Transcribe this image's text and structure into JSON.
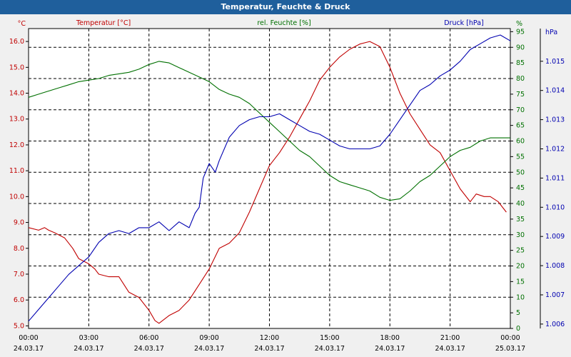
{
  "window": {
    "title": "Temperatur, Feuchte & Druck"
  },
  "chart_data": {
    "type": "line",
    "title": "Temperatur, Feuchte & Druck",
    "x_ticks": [
      {
        "time": "00:00",
        "date": "24.03.17"
      },
      {
        "time": "03:00",
        "date": "24.03.17"
      },
      {
        "time": "06:00",
        "date": "24.03.17"
      },
      {
        "time": "09:00",
        "date": "24.03.17"
      },
      {
        "time": "12:00",
        "date": "24.03.17"
      },
      {
        "time": "15:00",
        "date": "24.03.17"
      },
      {
        "time": "18:00",
        "date": "24.03.17"
      },
      {
        "time": "21:00",
        "date": "24.03.17"
      },
      {
        "time": "00:00",
        "date": "25.03.17"
      }
    ],
    "grid": true,
    "axes": [
      {
        "side": "left",
        "label": "Temperatur [°C]",
        "unit": "°C",
        "color": "#c00000",
        "range": [
          4.9,
          16.5
        ],
        "ticks": [
          "5.0",
          "6.0",
          "7.0",
          "8.0",
          "9.0",
          "10.0",
          "11.0",
          "12.0",
          "13.0",
          "14.0",
          "15.0",
          "16.0"
        ]
      },
      {
        "side": "right",
        "label": "rel. Feuchte [%]",
        "unit": "%",
        "color": "#007000",
        "range": [
          0,
          96
        ],
        "ticks": [
          "0",
          "5",
          "10",
          "15",
          "20",
          "25",
          "30",
          "35",
          "40",
          "45",
          "50",
          "55",
          "60",
          "65",
          "70",
          "75",
          "80",
          "85",
          "90",
          "95"
        ]
      },
      {
        "side": "right-outer",
        "label": "Druck [hPa]",
        "unit": "hPa",
        "color": "#0000b0",
        "range": [
          1005.85,
          1016.12
        ],
        "ticks": [
          "1.006",
          "1.007",
          "1.008",
          "1.009",
          "1.010",
          "1.011",
          "1.012",
          "1.013",
          "1.014",
          "1.015"
        ]
      }
    ],
    "series": [
      {
        "name": "Temperatur [°C]",
        "axis": 0,
        "color": "#c00000",
        "points": [
          [
            0,
            8.8
          ],
          [
            0.5,
            8.7
          ],
          [
            0.8,
            8.8
          ],
          [
            1.0,
            8.7
          ],
          [
            1.3,
            8.6
          ],
          [
            1.8,
            8.4
          ],
          [
            2.2,
            8.0
          ],
          [
            2.5,
            7.6
          ],
          [
            3.0,
            7.4
          ],
          [
            3.3,
            7.2
          ],
          [
            3.5,
            7.0
          ],
          [
            4.0,
            6.9
          ],
          [
            4.5,
            6.9
          ],
          [
            5.0,
            6.3
          ],
          [
            5.5,
            6.1
          ],
          [
            6.0,
            5.6
          ],
          [
            6.3,
            5.2
          ],
          [
            6.5,
            5.1
          ],
          [
            7.0,
            5.4
          ],
          [
            7.5,
            5.6
          ],
          [
            8.0,
            6.0
          ],
          [
            8.5,
            6.6
          ],
          [
            9.0,
            7.2
          ],
          [
            9.5,
            8.0
          ],
          [
            10.0,
            8.2
          ],
          [
            10.5,
            8.6
          ],
          [
            11.0,
            9.4
          ],
          [
            11.5,
            10.3
          ],
          [
            12.0,
            11.2
          ],
          [
            12.5,
            11.7
          ],
          [
            13.0,
            12.3
          ],
          [
            13.5,
            13.0
          ],
          [
            14.0,
            13.7
          ],
          [
            14.5,
            14.5
          ],
          [
            15.0,
            15.0
          ],
          [
            15.5,
            15.4
          ],
          [
            16.0,
            15.7
          ],
          [
            16.5,
            15.9
          ],
          [
            17.0,
            16.0
          ],
          [
            17.5,
            15.8
          ],
          [
            18.0,
            15.0
          ],
          [
            18.5,
            14.0
          ],
          [
            19.0,
            13.2
          ],
          [
            19.5,
            12.6
          ],
          [
            20.0,
            12.0
          ],
          [
            20.5,
            11.7
          ],
          [
            21.0,
            11.0
          ],
          [
            21.5,
            10.3
          ],
          [
            22.0,
            9.8
          ],
          [
            22.3,
            10.1
          ],
          [
            22.7,
            10.0
          ],
          [
            23.0,
            10.0
          ],
          [
            23.4,
            9.8
          ],
          [
            23.8,
            9.4
          ]
        ]
      },
      {
        "name": "rel. Feuchte [%]",
        "axis": 1,
        "color": "#007000",
        "points": [
          [
            0,
            74
          ],
          [
            0.5,
            75
          ],
          [
            1.0,
            76
          ],
          [
            1.5,
            77
          ],
          [
            2.0,
            78
          ],
          [
            2.5,
            79
          ],
          [
            3.0,
            79.5
          ],
          [
            3.5,
            80
          ],
          [
            4.0,
            81
          ],
          [
            4.5,
            81.5
          ],
          [
            5.0,
            82
          ],
          [
            5.5,
            83
          ],
          [
            6.0,
            84.5
          ],
          [
            6.5,
            85.5
          ],
          [
            7.0,
            85
          ],
          [
            7.5,
            83.5
          ],
          [
            8.0,
            82
          ],
          [
            8.5,
            80.5
          ],
          [
            9.0,
            79
          ],
          [
            9.5,
            76.5
          ],
          [
            10.0,
            75
          ],
          [
            10.5,
            74
          ],
          [
            11.0,
            72
          ],
          [
            11.5,
            69
          ],
          [
            12.0,
            66
          ],
          [
            12.5,
            63
          ],
          [
            13.0,
            60
          ],
          [
            13.5,
            57
          ],
          [
            14.0,
            55
          ],
          [
            14.5,
            52
          ],
          [
            15.0,
            49
          ],
          [
            15.5,
            47
          ],
          [
            16.0,
            46
          ],
          [
            16.5,
            45
          ],
          [
            17.0,
            44
          ],
          [
            17.5,
            42
          ],
          [
            18.0,
            41
          ],
          [
            18.5,
            41.5
          ],
          [
            19.0,
            44
          ],
          [
            19.5,
            47
          ],
          [
            20.0,
            49
          ],
          [
            20.5,
            52
          ],
          [
            21.0,
            55
          ],
          [
            21.5,
            57
          ],
          [
            22.0,
            58
          ],
          [
            22.5,
            60
          ],
          [
            23.0,
            61
          ],
          [
            23.5,
            61
          ],
          [
            24.0,
            61
          ]
        ]
      },
      {
        "name": "Druck [hPa]",
        "axis": 2,
        "color": "#0000b0",
        "points": [
          [
            0,
            1006.1
          ],
          [
            0.5,
            1006.5
          ],
          [
            1.0,
            1006.9
          ],
          [
            1.5,
            1007.3
          ],
          [
            2.0,
            1007.7
          ],
          [
            2.5,
            1008.0
          ],
          [
            3.0,
            1008.3
          ],
          [
            3.5,
            1008.8
          ],
          [
            4.0,
            1009.1
          ],
          [
            4.5,
            1009.2
          ],
          [
            5.0,
            1009.1
          ],
          [
            5.5,
            1009.3
          ],
          [
            6.0,
            1009.3
          ],
          [
            6.5,
            1009.5
          ],
          [
            7.0,
            1009.2
          ],
          [
            7.5,
            1009.5
          ],
          [
            8.0,
            1009.3
          ],
          [
            8.3,
            1009.8
          ],
          [
            8.5,
            1010.0
          ],
          [
            8.7,
            1011.0
          ],
          [
            9.0,
            1011.5
          ],
          [
            9.3,
            1011.2
          ],
          [
            9.5,
            1011.6
          ],
          [
            10.0,
            1012.4
          ],
          [
            10.5,
            1012.8
          ],
          [
            11.0,
            1013.0
          ],
          [
            11.5,
            1013.1
          ],
          [
            12.0,
            1013.1
          ],
          [
            12.5,
            1013.2
          ],
          [
            13.0,
            1013.0
          ],
          [
            13.5,
            1012.8
          ],
          [
            14.0,
            1012.6
          ],
          [
            14.5,
            1012.5
          ],
          [
            15.0,
            1012.3
          ],
          [
            15.5,
            1012.1
          ],
          [
            16.0,
            1012.0
          ],
          [
            16.5,
            1012.0
          ],
          [
            17.0,
            1012.0
          ],
          [
            17.5,
            1012.1
          ],
          [
            18.0,
            1012.5
          ],
          [
            18.5,
            1013.0
          ],
          [
            19.0,
            1013.5
          ],
          [
            19.5,
            1014.0
          ],
          [
            20.0,
            1014.2
          ],
          [
            20.5,
            1014.5
          ],
          [
            21.0,
            1014.7
          ],
          [
            21.5,
            1015.0
          ],
          [
            22.0,
            1015.4
          ],
          [
            22.5,
            1015.6
          ],
          [
            23.0,
            1015.8
          ],
          [
            23.5,
            1015.9
          ],
          [
            24.0,
            1015.7
          ]
        ]
      }
    ]
  }
}
